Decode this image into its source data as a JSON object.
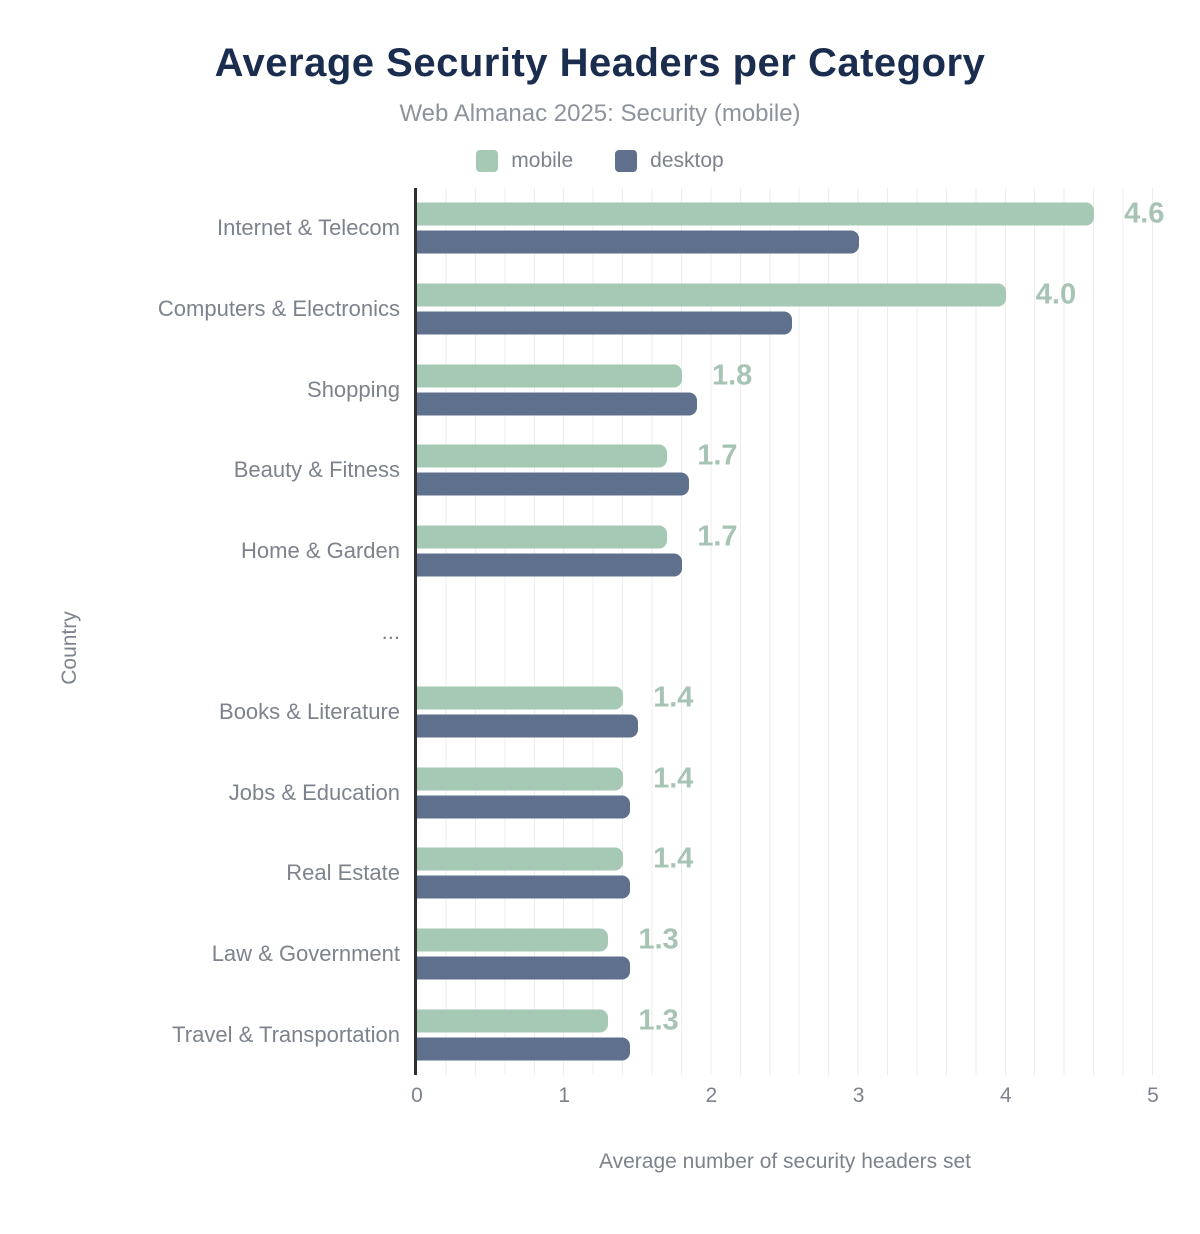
{
  "chart_data": {
    "type": "bar",
    "orientation": "horizontal",
    "title": "Average Security Headers per Category",
    "subtitle": "Web Almanac 2025: Security (mobile)",
    "xlabel": "Average number of security headers set",
    "ylabel": "Country",
    "xlim": [
      0,
      5
    ],
    "xticks": [
      0,
      1,
      2,
      3,
      4,
      5
    ],
    "grid": {
      "minor_step": 0.2,
      "color": "#ededed",
      "visible": true
    },
    "legend_position": "top",
    "legend": [
      {
        "name": "mobile",
        "color": "#a6c9b6"
      },
      {
        "name": "desktop",
        "color": "#5e708c"
      }
    ],
    "colors": {
      "mobile": "#a6c9b6",
      "desktop": "#5e708c",
      "value_label": "#a6c3b4",
      "title": "#1b2d4f",
      "subtitle": "#8d939d",
      "axis_text": "#7d838d",
      "axis_line": "#2f2f2f"
    },
    "rows": [
      {
        "category": "Internet & Telecom",
        "mobile": 4.6,
        "desktop": 3.0,
        "value_label": "4.6"
      },
      {
        "category": "Computers & Electronics",
        "mobile": 4.0,
        "desktop": 2.55,
        "value_label": "4.0"
      },
      {
        "category": "Shopping",
        "mobile": 1.8,
        "desktop": 1.9,
        "value_label": "1.8"
      },
      {
        "category": "Beauty & Fitness",
        "mobile": 1.7,
        "desktop": 1.85,
        "value_label": "1.7"
      },
      {
        "category": "Home & Garden",
        "mobile": 1.7,
        "desktop": 1.8,
        "value_label": "1.7"
      },
      {
        "category": "...",
        "mobile": null,
        "desktop": null,
        "value_label": ""
      },
      {
        "category": "Books & Literature",
        "mobile": 1.4,
        "desktop": 1.5,
        "value_label": "1.4"
      },
      {
        "category": "Jobs & Education",
        "mobile": 1.4,
        "desktop": 1.45,
        "value_label": "1.4"
      },
      {
        "category": "Real Estate",
        "mobile": 1.4,
        "desktop": 1.45,
        "value_label": "1.4"
      },
      {
        "category": "Law & Government",
        "mobile": 1.3,
        "desktop": 1.45,
        "value_label": "1.3"
      },
      {
        "category": "Travel & Transportation",
        "mobile": 1.3,
        "desktop": 1.45,
        "value_label": "1.3"
      }
    ]
  }
}
